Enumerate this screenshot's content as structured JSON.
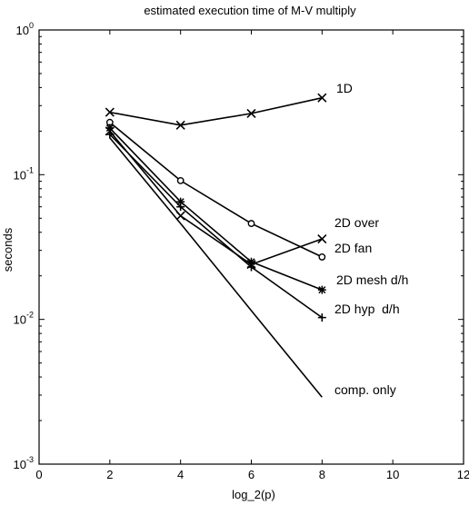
{
  "chart_data": {
    "type": "line",
    "title": "estimated execution time of M-V multiply",
    "xlabel": "log_2(p)",
    "ylabel": "seconds",
    "xlim": [
      0,
      12
    ],
    "ylim": [
      0.001,
      1
    ],
    "yscale": "log",
    "grid": false,
    "legend": "none",
    "x_ticks": [
      "0",
      "2",
      "4",
      "6",
      "8",
      "10",
      "12"
    ],
    "y_ticks": [
      {
        "base": "10",
        "exp": "0"
      },
      {
        "base": "10",
        "exp": "-1"
      },
      {
        "base": "10",
        "exp": "-2"
      },
      {
        "base": "10",
        "exp": "-3"
      }
    ],
    "series": [
      {
        "name": "1D",
        "marker": "x",
        "x": [
          2,
          4,
          6,
          8
        ],
        "y": [
          0.27,
          0.22,
          0.265,
          0.34
        ]
      },
      {
        "name": "2D over",
        "marker": "x",
        "x": [
          2,
          4,
          6,
          8
        ],
        "y": [
          0.2,
          0.052,
          0.024,
          0.036
        ]
      },
      {
        "name": "2D fan",
        "marker": "o",
        "x": [
          2,
          4,
          6,
          8
        ],
        "y": [
          0.23,
          0.091,
          0.046,
          0.027
        ]
      },
      {
        "name": "2D mesh d/h",
        "marker": "*",
        "x": [
          2,
          4,
          6,
          8
        ],
        "y": [
          0.21,
          0.065,
          0.025,
          0.016
        ]
      },
      {
        "name": "2D hyp  d/h",
        "marker": "+",
        "x": [
          2,
          4,
          6,
          8
        ],
        "y": [
          0.19,
          0.06,
          0.023,
          0.0103
        ]
      },
      {
        "name": "comp. only",
        "marker": "none",
        "x": [
          2,
          4,
          6,
          8
        ],
        "y": [
          0.18,
          0.046,
          0.0115,
          0.0029
        ]
      }
    ]
  }
}
